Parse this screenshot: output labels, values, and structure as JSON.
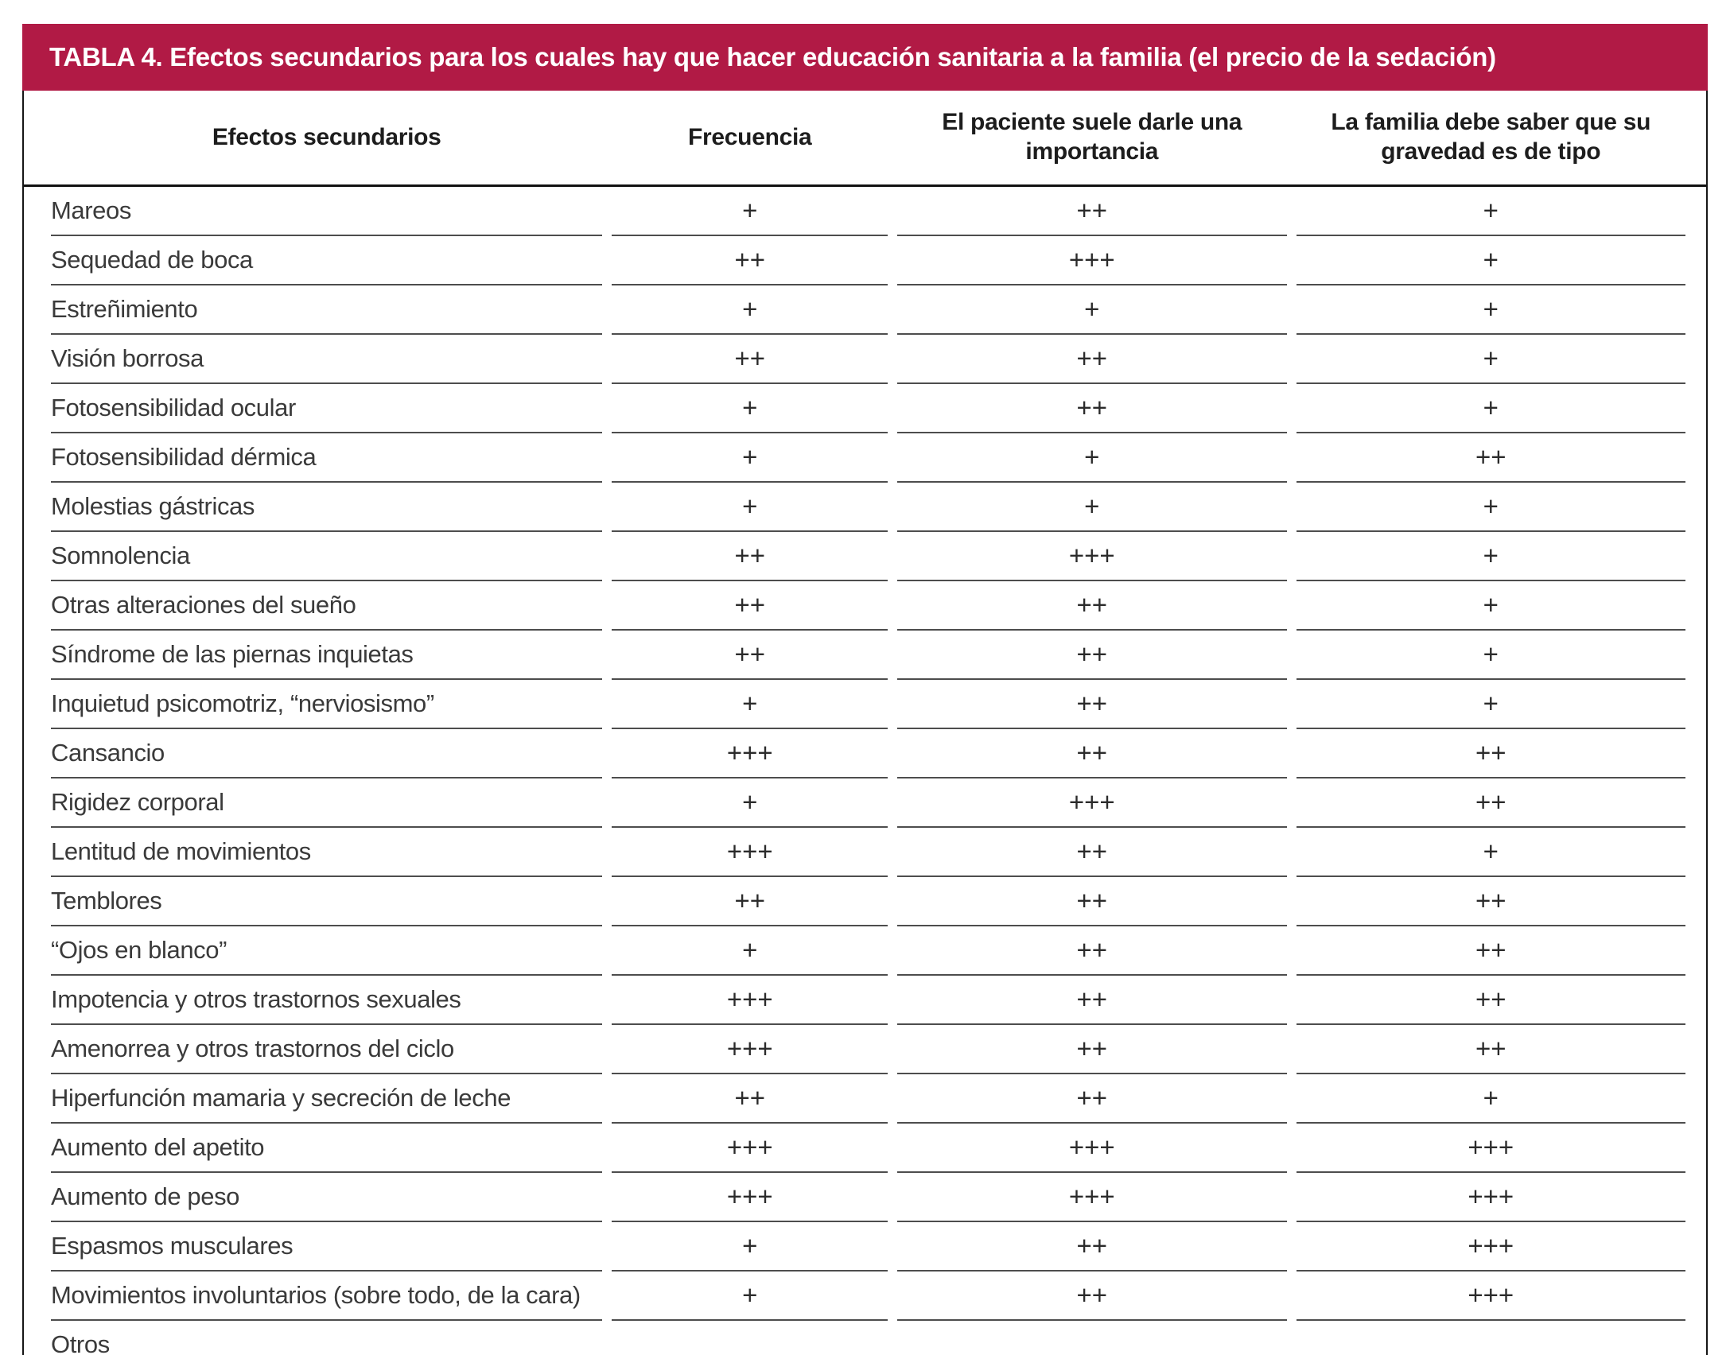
{
  "accent_color": "#b11a45",
  "title": "TABLA 4. Efectos secundarios para los cuales hay que hacer educación sanitaria a la familia (el precio de la sedación)",
  "columns": [
    {
      "label": "Efectos secundarios"
    },
    {
      "label": "Frecuencia"
    },
    {
      "label": "El paciente suele darle una importancia"
    },
    {
      "label": "La familia debe saber que su gravedad es de tipo"
    }
  ],
  "rows": [
    {
      "label": "Mareos",
      "frecuencia": "+",
      "importancia": "++",
      "gravedad": "+"
    },
    {
      "label": "Sequedad de boca",
      "frecuencia": "++",
      "importancia": "+++",
      "gravedad": "+"
    },
    {
      "label": "Estreñimiento",
      "frecuencia": "+",
      "importancia": "+",
      "gravedad": "+"
    },
    {
      "label": "Visión borrosa",
      "frecuencia": "++",
      "importancia": "++",
      "gravedad": "+"
    },
    {
      "label": "Fotosensibilidad ocular",
      "frecuencia": "+",
      "importancia": "++",
      "gravedad": "+"
    },
    {
      "label": "Fotosensibilidad dérmica",
      "frecuencia": "+",
      "importancia": "+",
      "gravedad": "++"
    },
    {
      "label": "Molestias gástricas",
      "frecuencia": "+",
      "importancia": "+",
      "gravedad": "+"
    },
    {
      "label": "Somnolencia",
      "frecuencia": "++",
      "importancia": "+++",
      "gravedad": "+"
    },
    {
      "label": "Otras alteraciones del sueño",
      "frecuencia": "++",
      "importancia": "++",
      "gravedad": "+"
    },
    {
      "label": "Síndrome de las piernas inquietas",
      "frecuencia": "++",
      "importancia": "++",
      "gravedad": "+"
    },
    {
      "label": "Inquietud psicomotriz, “nerviosismo”",
      "frecuencia": "+",
      "importancia": "++",
      "gravedad": "+"
    },
    {
      "label": "Cansancio",
      "frecuencia": "+++",
      "importancia": "++",
      "gravedad": "++"
    },
    {
      "label": "Rigidez corporal",
      "frecuencia": "+",
      "importancia": "+++",
      "gravedad": "++"
    },
    {
      "label": "Lentitud de movimientos",
      "frecuencia": "+++",
      "importancia": "++",
      "gravedad": "+"
    },
    {
      "label": "Temblores",
      "frecuencia": "++",
      "importancia": "++",
      "gravedad": "++"
    },
    {
      "label": "“Ojos en blanco”",
      "frecuencia": "+",
      "importancia": "++",
      "gravedad": "++"
    },
    {
      "label": "Impotencia y otros trastornos sexuales",
      "frecuencia": "+++",
      "importancia": "++",
      "gravedad": "++"
    },
    {
      "label": "Amenorrea y otros trastornos del ciclo",
      "frecuencia": "+++",
      "importancia": "++",
      "gravedad": "++"
    },
    {
      "label": "Hiperfunción mamaria y secreción de leche",
      "frecuencia": "++",
      "importancia": "++",
      "gravedad": "+"
    },
    {
      "label": "Aumento del apetito",
      "frecuencia": "+++",
      "importancia": "+++",
      "gravedad": "+++"
    },
    {
      "label": "Aumento de peso",
      "frecuencia": "+++",
      "importancia": "+++",
      "gravedad": "+++"
    },
    {
      "label": "Espasmos musculares",
      "frecuencia": "+",
      "importancia": "++",
      "gravedad": "+++"
    },
    {
      "label": "Movimientos involuntarios (sobre todo, de la cara)",
      "frecuencia": "+",
      "importancia": "++",
      "gravedad": "+++"
    },
    {
      "label": "Otros",
      "frecuencia": "",
      "importancia": "",
      "gravedad": ""
    }
  ]
}
